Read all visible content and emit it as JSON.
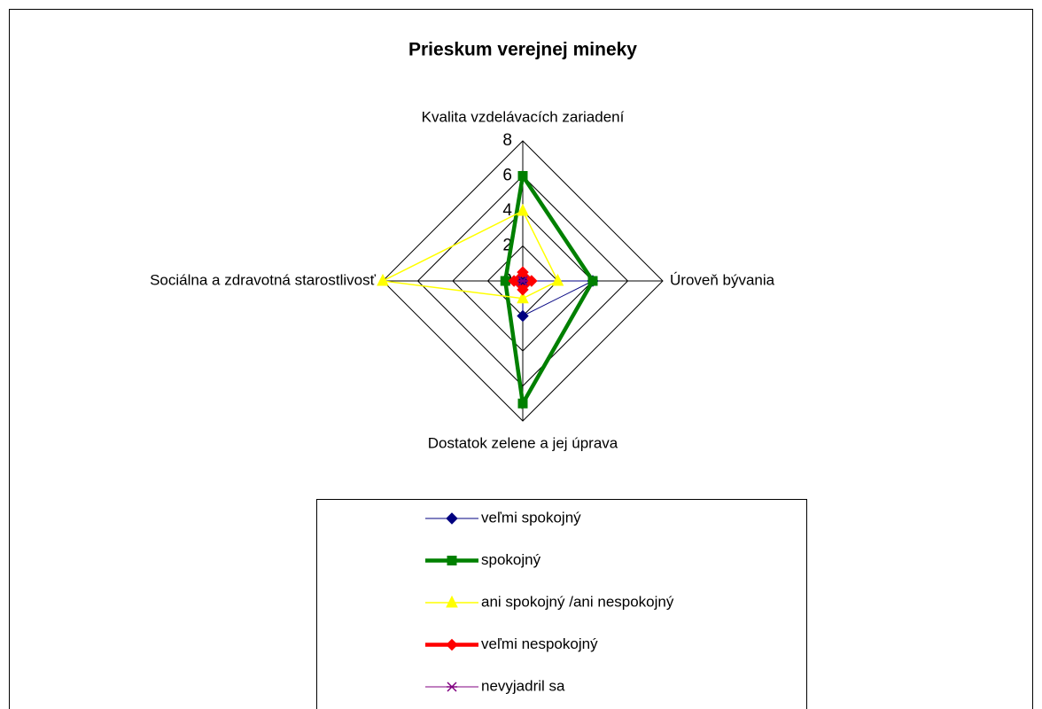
{
  "chart_data": {
    "type": "radar",
    "title": "Prieskum verejnej mineky",
    "categories": [
      "Kvalita vzdelávacích zariadení",
      "Úroveň bývania",
      "Dostatok zelene a jej úprava",
      "Sociálna a zdravotná starostlivosť"
    ],
    "ylim": [
      0,
      8
    ],
    "yticks": [
      0,
      2,
      4,
      6,
      8
    ],
    "series": [
      {
        "name": "veľmi spokojný",
        "color": "#000080",
        "marker": "diamond",
        "values": [
          0,
          4,
          2,
          0
        ]
      },
      {
        "name": "spokojný",
        "color": "#008000",
        "marker": "square",
        "values": [
          6,
          4,
          7,
          1
        ]
      },
      {
        "name": "ani spokojný /ani nespokojný",
        "color": "#ffff00",
        "marker": "triangle",
        "values": [
          4,
          2,
          1,
          8
        ]
      },
      {
        "name": "veľmi nespokojný",
        "color": "#ff0000",
        "marker": "diamond",
        "values": [
          0.5,
          0.5,
          0.5,
          0.5
        ]
      },
      {
        "name": "nevyjadril sa",
        "color": "#800080",
        "marker": "star",
        "values": [
          0,
          0,
          0,
          0
        ]
      }
    ]
  }
}
